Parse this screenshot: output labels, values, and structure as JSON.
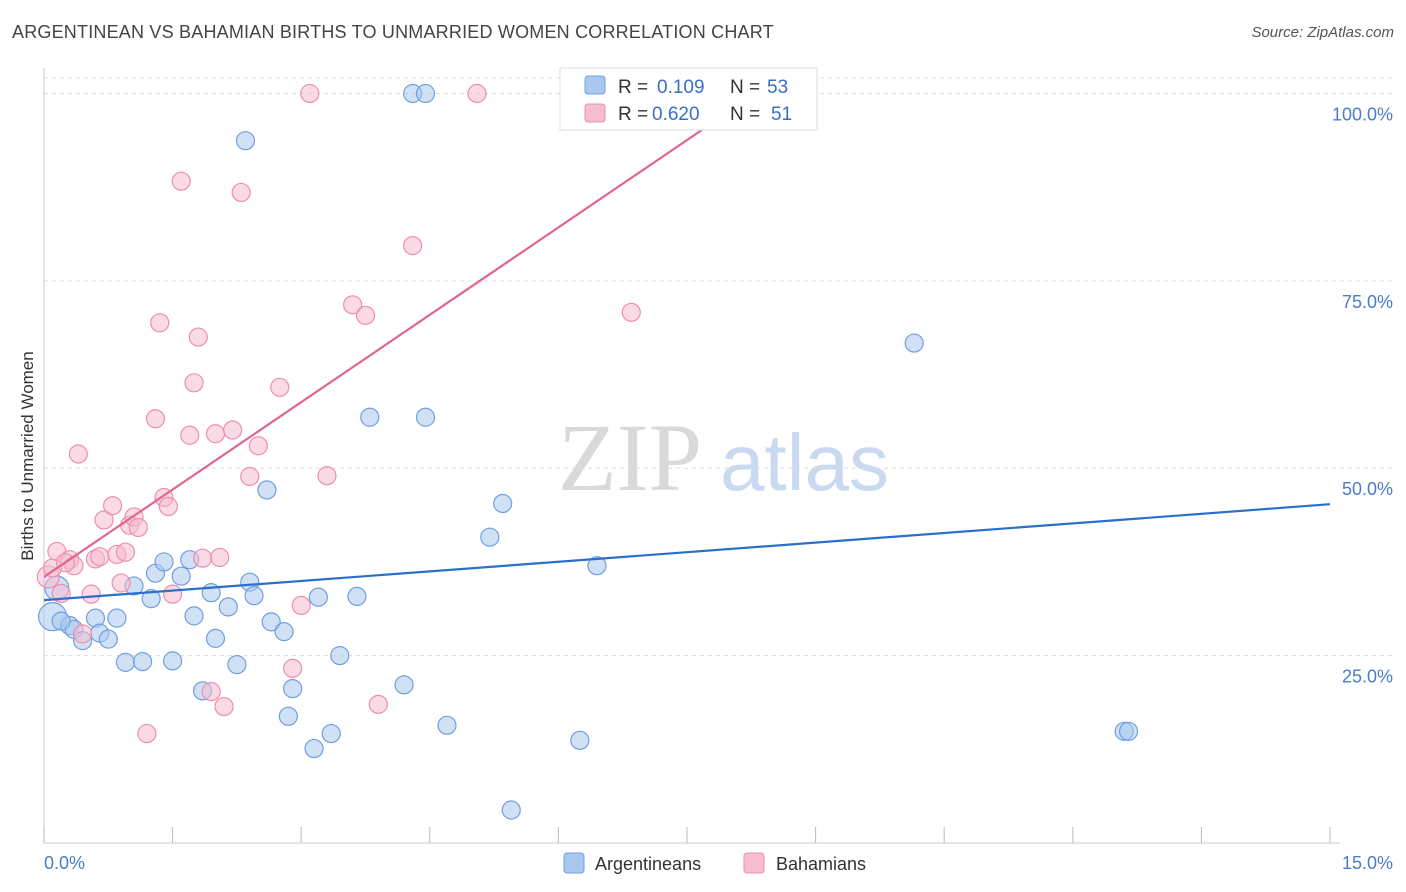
{
  "title": "ARGENTINEAN VS BAHAMIAN BIRTHS TO UNMARRIED WOMEN CORRELATION CHART",
  "source": "Source: ZipAtlas.com",
  "watermark": {
    "zip": "ZIP",
    "atlas": "atlas"
  },
  "colors": {
    "blue_fill": "#a9c8ef",
    "blue_stroke": "#6f9fe0",
    "blue_line": "#2c6fca",
    "pink_fill": "#f6bcd0",
    "pink_stroke": "#eb8fb0",
    "pink_line": "#e0668f",
    "grid": "#dddddd",
    "tick_label": "#4a7cc9"
  },
  "legend": {
    "items": [
      {
        "r_label": "R =",
        "r_value": "0.109",
        "n_label": "N =",
        "n_value": "53"
      },
      {
        "r_label": "R =",
        "r_value": "0.620",
        "n_label": "N =",
        "n_value": "51"
      }
    ]
  },
  "bottom_legend": [
    "Argentineans",
    "Bahamians"
  ],
  "chart_data": {
    "type": "scatter",
    "title": "ARGENTINEAN VS BAHAMIAN BIRTHS TO UNMARRIED WOMEN CORRELATION CHART",
    "xlabel": "",
    "ylabel": "Births to Unmarried Women",
    "xlim": [
      0,
      15
    ],
    "ylim": [
      0,
      105
    ],
    "x_tick_labels": [
      "0.0%",
      "15.0%"
    ],
    "y_ticks": [
      {
        "value": 25,
        "label": "25.0%"
      },
      {
        "value": 50,
        "label": "50.0%"
      },
      {
        "value": 75,
        "label": "75.0%"
      },
      {
        "value": 100,
        "label": "100.0%"
      }
    ],
    "grid": true,
    "legend_position": "top-center",
    "series": [
      {
        "name": "Argentineans",
        "color": "#a9c8ef",
        "r": 0.109,
        "n": 53,
        "trend": [
          [
            0,
            32.4
          ],
          [
            15,
            45.2
          ]
        ],
        "points": [
          [
            0.1,
            30.2,
            14
          ],
          [
            0.15,
            34,
            12
          ],
          [
            0.3,
            29,
            9
          ],
          [
            0.35,
            28.5,
            9
          ],
          [
            0.45,
            27,
            9
          ],
          [
            0.6,
            30,
            9
          ],
          [
            0.65,
            28,
            9
          ],
          [
            0.75,
            27.2,
            9
          ],
          [
            0.85,
            30,
            9
          ],
          [
            0.95,
            24.1,
            9
          ],
          [
            1.05,
            34.3,
            9
          ],
          [
            1.15,
            24.2,
            9
          ],
          [
            1.25,
            32.6,
            9
          ],
          [
            1.3,
            36,
            9
          ],
          [
            1.4,
            37.5,
            9
          ],
          [
            1.5,
            24.3,
            9
          ],
          [
            1.6,
            35.6,
            9
          ],
          [
            1.7,
            37.8,
            9
          ],
          [
            1.75,
            30.3,
            9
          ],
          [
            1.85,
            20.3,
            9
          ],
          [
            1.95,
            33.4,
            9
          ],
          [
            2.0,
            27.3,
            9
          ],
          [
            2.15,
            31.5,
            9
          ],
          [
            2.25,
            23.8,
            9
          ],
          [
            2.35,
            93.7,
            9
          ],
          [
            2.4,
            34.8,
            9
          ],
          [
            2.45,
            33,
            9
          ],
          [
            2.6,
            47.1,
            9
          ],
          [
            2.65,
            29.5,
            9
          ],
          [
            2.8,
            28.2,
            9
          ],
          [
            2.85,
            16.9,
            9
          ],
          [
            2.9,
            20.6,
            9
          ],
          [
            3.15,
            12.6,
            9
          ],
          [
            3.2,
            32.8,
            9
          ],
          [
            3.35,
            14.6,
            9
          ],
          [
            3.45,
            25,
            9
          ],
          [
            3.65,
            32.9,
            9
          ],
          [
            3.8,
            56.8,
            9
          ],
          [
            4.2,
            21.1,
            9
          ],
          [
            4.3,
            100,
            9
          ],
          [
            4.45,
            56.8,
            9
          ],
          [
            4.45,
            100,
            9
          ],
          [
            4.7,
            15.7,
            9
          ],
          [
            5.2,
            40.8,
            9
          ],
          [
            5.35,
            45.3,
            9
          ],
          [
            5.45,
            4.4,
            9
          ],
          [
            6.25,
            13.7,
            9
          ],
          [
            6.45,
            37,
            9
          ],
          [
            10.15,
            66.7,
            9
          ],
          [
            12.6,
            14.9,
            9
          ],
          [
            12.65,
            14.9,
            9
          ],
          [
            6.5,
            100,
            9
          ],
          [
            0.2,
            29.6,
            9
          ]
        ]
      },
      {
        "name": "Bahamians",
        "color": "#f6bcd0",
        "r": 0.62,
        "n": 51,
        "trend": [
          [
            0,
            35.5
          ],
          [
            8.3,
            100
          ]
        ],
        "points": [
          [
            0.05,
            35.5,
            11
          ],
          [
            0.1,
            36.7,
            9
          ],
          [
            0.15,
            38.9,
            9
          ],
          [
            0.2,
            33.3,
            9
          ],
          [
            0.3,
            37.8,
            9
          ],
          [
            0.35,
            37,
            9
          ],
          [
            0.4,
            51.9,
            9
          ],
          [
            0.45,
            27.9,
            9
          ],
          [
            0.55,
            33.2,
            9
          ],
          [
            0.6,
            37.9,
            9
          ],
          [
            0.7,
            43.1,
            9
          ],
          [
            0.8,
            45,
            9
          ],
          [
            0.85,
            38.5,
            9
          ],
          [
            0.9,
            34.7,
            9
          ],
          [
            0.95,
            38.8,
            9
          ],
          [
            1.0,
            42.4,
            9
          ],
          [
            1.05,
            43.5,
            9
          ],
          [
            1.1,
            42.1,
            9
          ],
          [
            1.2,
            14.6,
            9
          ],
          [
            1.3,
            56.6,
            9
          ],
          [
            1.35,
            69.4,
            9
          ],
          [
            1.4,
            46.1,
            9
          ],
          [
            1.45,
            44.9,
            9
          ],
          [
            1.5,
            33.2,
            9
          ],
          [
            1.6,
            88.3,
            9
          ],
          [
            1.7,
            54.4,
            9
          ],
          [
            1.75,
            61.4,
            9
          ],
          [
            1.8,
            67.5,
            9
          ],
          [
            1.85,
            38,
            9
          ],
          [
            1.95,
            20.2,
            9
          ],
          [
            2.0,
            54.6,
            9
          ],
          [
            2.1,
            18.2,
            9
          ],
          [
            2.2,
            55.1,
            9
          ],
          [
            2.3,
            86.8,
            9
          ],
          [
            2.4,
            48.9,
            9
          ],
          [
            2.5,
            53,
            9
          ],
          [
            2.75,
            60.8,
            9
          ],
          [
            2.9,
            23.3,
            9
          ],
          [
            3.0,
            31.7,
            9
          ],
          [
            3.1,
            100,
            9
          ],
          [
            3.3,
            49,
            9
          ],
          [
            3.6,
            71.8,
            9
          ],
          [
            3.75,
            70.4,
            9
          ],
          [
            3.9,
            18.5,
            9
          ],
          [
            4.3,
            79.7,
            9
          ],
          [
            5.05,
            100,
            9
          ],
          [
            6.85,
            70.8,
            9
          ],
          [
            7.65,
            100,
            9
          ],
          [
            0.25,
            37.4,
            9
          ],
          [
            0.65,
            38.2,
            9
          ],
          [
            2.05,
            38.1,
            9
          ]
        ]
      }
    ]
  }
}
